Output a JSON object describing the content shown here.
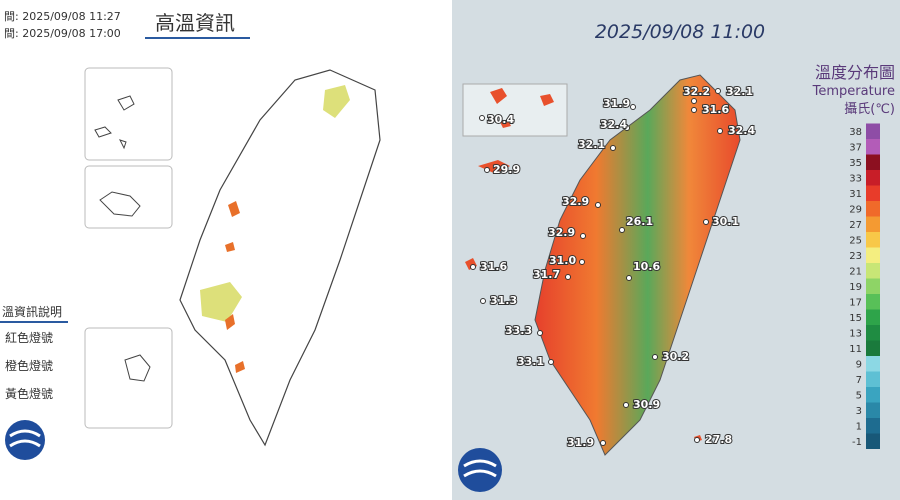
{
  "left_panel": {
    "issued": "間: 2025/09/08 11:27",
    "valid": "間: 2025/09/08 17:00",
    "title": "高溫資訊",
    "legend_title": "溫資訊說明",
    "legend_items": [
      "紅色燈號",
      "橙色燈號",
      "黃色燈號"
    ]
  },
  "right_panel": {
    "timestamp": "2025/09/08 11:00",
    "title": "溫度分布圖",
    "subtitle": "Temperature",
    "unit": "攝氏(℃)",
    "scale_ticks": [
      38,
      37,
      35,
      33,
      31,
      29,
      27,
      25,
      23,
      21,
      19,
      17,
      15,
      13,
      11,
      9,
      7,
      5,
      3,
      1,
      -1
    ],
    "scale_colors": [
      "#8e4da6",
      "#b35cb8",
      "#8c1020",
      "#c81e28",
      "#e83c2a",
      "#f06a2a",
      "#f49a32",
      "#f8c848",
      "#f4ee80",
      "#c8e676",
      "#8ed466",
      "#58c058",
      "#2ea44a",
      "#1f8c42",
      "#1a7a3c",
      "#8cd8e4",
      "#5ec0d4",
      "#3aa4c0",
      "#2a88a8",
      "#1e6c90",
      "#185878"
    ],
    "stations": [
      "32.2",
      "32.1",
      "31.9",
      "31.6",
      "32.4",
      "32.4",
      "32.1",
      "30.4",
      "29.9",
      "32.9",
      "26.1",
      "30.1",
      "32.9",
      "31.0",
      "10.6",
      "31.6",
      "31.7",
      "31.3",
      "33.3",
      "33.1",
      "30.2",
      "30.9",
      "31.9",
      "27.8"
    ]
  }
}
